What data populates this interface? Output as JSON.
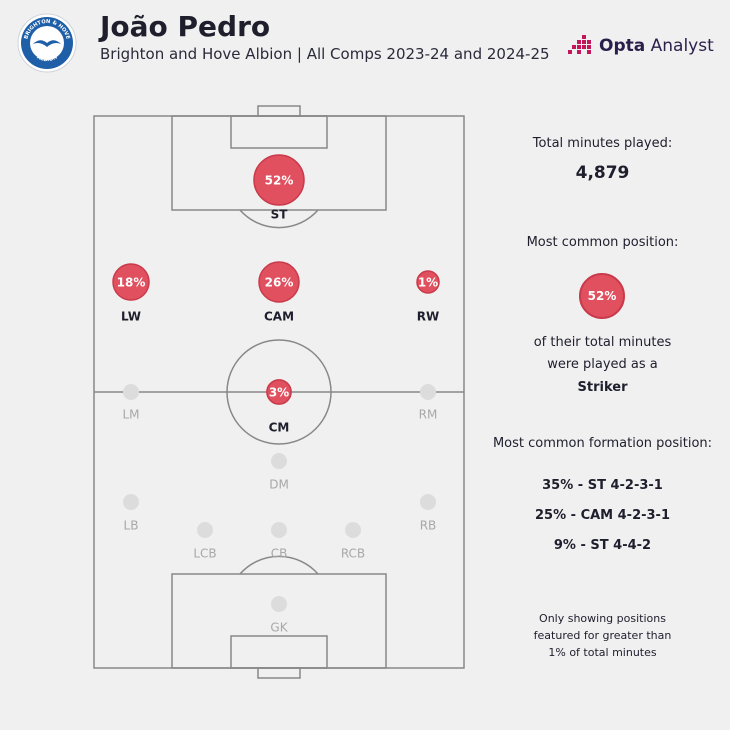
{
  "header": {
    "title": "João Pedro",
    "subtitle": "Brighton and Hove Albion | All Comps 2023-24 and 2024-25",
    "brand_label": "Opta",
    "brand_suffix": "Analyst",
    "badge_top_text": "BRIGHTON & HOVE",
    "badge_bottom_text": "ALBION"
  },
  "colors": {
    "active_fill": "#e0505f",
    "active_stroke": "#c93a4a",
    "inactive": "#dcdcdc",
    "pitch_line": "#888888",
    "badge_blue": "#1f5fa8",
    "opta_magenta": "#c2185b"
  },
  "chart_data": {
    "type": "scatter",
    "title": "",
    "description_units": "percent of total minutes",
    "positions": [
      {
        "code": "ST",
        "value": 52,
        "label": "52%"
      },
      {
        "code": "LW",
        "value": 18,
        "label": "18%"
      },
      {
        "code": "CAM",
        "value": 26,
        "label": "26%"
      },
      {
        "code": "RW",
        "value": 1,
        "label": "1%"
      },
      {
        "code": "CM",
        "value": 3,
        "label": "3%"
      },
      {
        "code": "LM",
        "value": 0,
        "label": ""
      },
      {
        "code": "RM",
        "value": 0,
        "label": ""
      },
      {
        "code": "DM",
        "value": 0,
        "label": ""
      },
      {
        "code": "LB",
        "value": 0,
        "label": ""
      },
      {
        "code": "RB",
        "value": 0,
        "label": ""
      },
      {
        "code": "LCB",
        "value": 0,
        "label": ""
      },
      {
        "code": "CB",
        "value": 0,
        "label": ""
      },
      {
        "code": "RCB",
        "value": 0,
        "label": ""
      },
      {
        "code": "GK",
        "value": 0,
        "label": ""
      }
    ]
  },
  "sidebar": {
    "total_label": "Total minutes played:",
    "total_value": "4,879",
    "common_label": "Most common position:",
    "common_value": "52%",
    "common_line1": "of their total minutes",
    "common_line2": "were played as a",
    "common_position": "Striker",
    "formation_label": "Most common formation position:",
    "formations": [
      "35% - ST 4-2-3-1",
      "25% - CAM 4-2-3-1",
      "9% - ST 4-4-2"
    ],
    "note_lines": [
      "Only showing positions",
      "featured for greater than",
      "1% of total minutes"
    ]
  }
}
